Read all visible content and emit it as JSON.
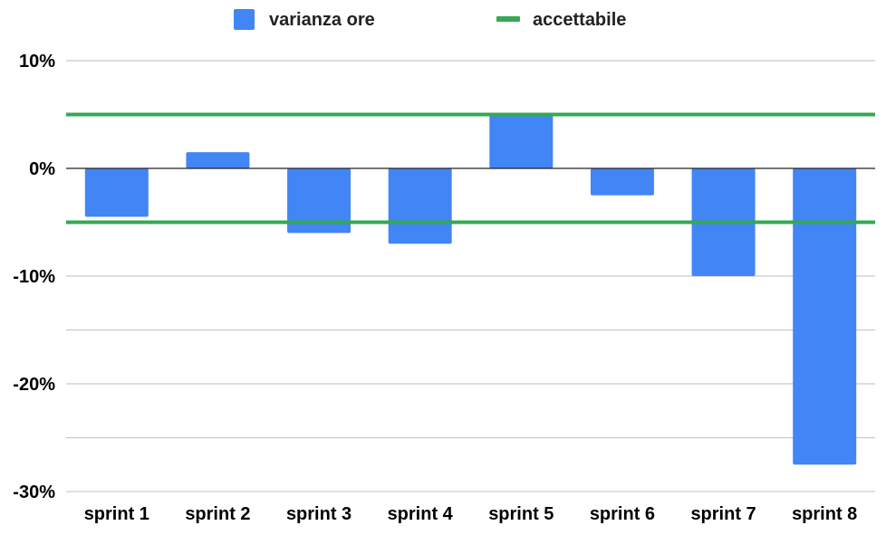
{
  "chart_data": {
    "type": "bar",
    "categories": [
      "sprint 1",
      "sprint 2",
      "sprint 3",
      "sprint 4",
      "sprint 5",
      "sprint 6",
      "sprint 7",
      "sprint 8"
    ],
    "series": [
      {
        "name": "varianza ore",
        "values": [
          -4.5,
          1.5,
          -6,
          -7,
          5,
          -2.5,
          -10,
          -27.5
        ],
        "color": "#4285f4"
      }
    ],
    "reference_lines": [
      {
        "name": "accettabile",
        "values": [
          5,
          -5
        ],
        "color": "#34a853"
      }
    ],
    "y_ticks": [
      10,
      0,
      -10,
      -20,
      -30
    ],
    "y_tick_labels": [
      "10%",
      "0%",
      "-10%",
      "-20%",
      "-30%"
    ],
    "ylim": [
      -30,
      10
    ],
    "grid": true,
    "legend_position": "top-center",
    "title": "",
    "xlabel": "",
    "ylabel": ""
  },
  "legend": [
    {
      "label": "varianza ore",
      "color": "#4285f4",
      "shape": "square"
    },
    {
      "label": "accettabile",
      "color": "#34a853",
      "shape": "line"
    }
  ]
}
